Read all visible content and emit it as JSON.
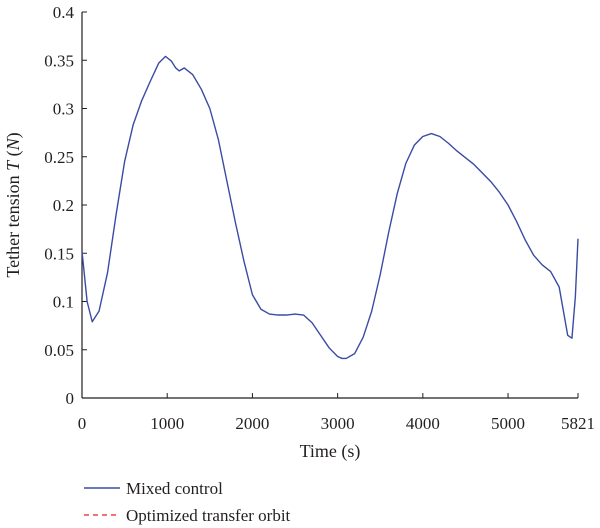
{
  "chart_data": {
    "type": "line",
    "xlabel": "Time (s)",
    "ylabel": "Tether tension T (N)",
    "ylabel_parts": [
      "Tether tension ",
      "T",
      " (",
      "N",
      ")"
    ],
    "xlim": [
      0,
      5821
    ],
    "ylim": [
      0,
      0.4
    ],
    "x_ticks": [
      0,
      1000,
      2000,
      3000,
      4000,
      5000,
      5821
    ],
    "x_tick_labels": [
      "0",
      "1000",
      "2000",
      "3000",
      "4000",
      "5000",
      "5821"
    ],
    "y_ticks": [
      0,
      0.05,
      0.1,
      0.15,
      0.2,
      0.25,
      0.3,
      0.35,
      0.4
    ],
    "y_tick_labels": [
      "0",
      "0.05",
      "0.1",
      "0.15",
      "0.2",
      "0.25",
      "0.3",
      "0.35",
      "0.4"
    ],
    "grid": false,
    "legend_position": "bottom-left",
    "series": [
      {
        "name": "Mixed control",
        "color": "#3a4ba3",
        "style": "solid",
        "x": [
          0,
          60,
          120,
          200,
          300,
          400,
          500,
          600,
          700,
          800,
          900,
          980,
          1050,
          1100,
          1140,
          1200,
          1300,
          1400,
          1500,
          1600,
          1700,
          1800,
          1900,
          2000,
          2100,
          2200,
          2300,
          2400,
          2500,
          2600,
          2700,
          2800,
          2900,
          3000,
          3050,
          3100,
          3200,
          3300,
          3400,
          3500,
          3600,
          3700,
          3800,
          3900,
          4000,
          4100,
          4200,
          4300,
          4400,
          4500,
          4600,
          4700,
          4800,
          4900,
          5000,
          5100,
          5200,
          5300,
          5400,
          5500,
          5600,
          5650,
          5700,
          5750,
          5790,
          5821
        ],
        "y": [
          0.152,
          0.1,
          0.079,
          0.09,
          0.13,
          0.19,
          0.245,
          0.283,
          0.308,
          0.328,
          0.347,
          0.354,
          0.349,
          0.342,
          0.339,
          0.342,
          0.335,
          0.32,
          0.3,
          0.268,
          0.225,
          0.182,
          0.142,
          0.107,
          0.092,
          0.087,
          0.086,
          0.086,
          0.087,
          0.086,
          0.078,
          0.065,
          0.052,
          0.043,
          0.041,
          0.041,
          0.046,
          0.063,
          0.09,
          0.128,
          0.172,
          0.212,
          0.243,
          0.262,
          0.271,
          0.274,
          0.271,
          0.264,
          0.256,
          0.249,
          0.242,
          0.233,
          0.224,
          0.213,
          0.2,
          0.183,
          0.164,
          0.148,
          0.138,
          0.131,
          0.115,
          0.09,
          0.065,
          0.062,
          0.105,
          0.165
        ]
      },
      {
        "name": "Optimized transfer orbit",
        "color": "#e8474f",
        "style": "dashed",
        "x": [],
        "y": []
      }
    ]
  }
}
